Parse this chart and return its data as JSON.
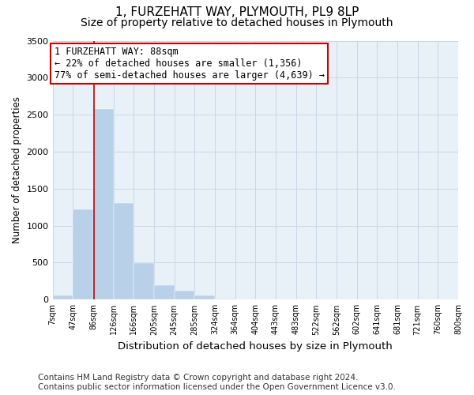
{
  "title": "1, FURZEHATT WAY, PLYMOUTH, PL9 8LP",
  "subtitle": "Size of property relative to detached houses in Plymouth",
  "xlabel": "Distribution of detached houses by size in Plymouth",
  "ylabel": "Number of detached properties",
  "bin_labels": [
    "7sqm",
    "47sqm",
    "86sqm",
    "126sqm",
    "166sqm",
    "205sqm",
    "245sqm",
    "285sqm",
    "324sqm",
    "364sqm",
    "404sqm",
    "443sqm",
    "483sqm",
    "522sqm",
    "562sqm",
    "602sqm",
    "641sqm",
    "681sqm",
    "721sqm",
    "760sqm",
    "800sqm"
  ],
  "bar_heights": [
    60,
    1220,
    2580,
    1310,
    490,
    195,
    120,
    55,
    15,
    5,
    2,
    1,
    0,
    0,
    0,
    0,
    0,
    0,
    0,
    0
  ],
  "bar_color": "#b8d0e8",
  "bar_edgecolor": "#b8d0e8",
  "property_line_x": 2.05,
  "property_line_color": "#cc0000",
  "annotation_text": "1 FURZEHATT WAY: 88sqm\n← 22% of detached houses are smaller (1,356)\n77% of semi-detached houses are larger (4,639) →",
  "annotation_box_edgecolor": "#cc0000",
  "annotation_box_facecolor": "#ffffff",
  "ylim": [
    0,
    3500
  ],
  "yticks": [
    0,
    500,
    1000,
    1500,
    2000,
    2500,
    3000,
    3500
  ],
  "grid_color": "#c8d8e8",
  "bg_color": "#e8f0f8",
  "footer": "Contains HM Land Registry data © Crown copyright and database right 2024.\nContains public sector information licensed under the Open Government Licence v3.0.",
  "title_fontsize": 11,
  "subtitle_fontsize": 10,
  "xlabel_fontsize": 9.5,
  "ylabel_fontsize": 8.5,
  "footer_fontsize": 7.5,
  "annot_fontsize": 8.5
}
